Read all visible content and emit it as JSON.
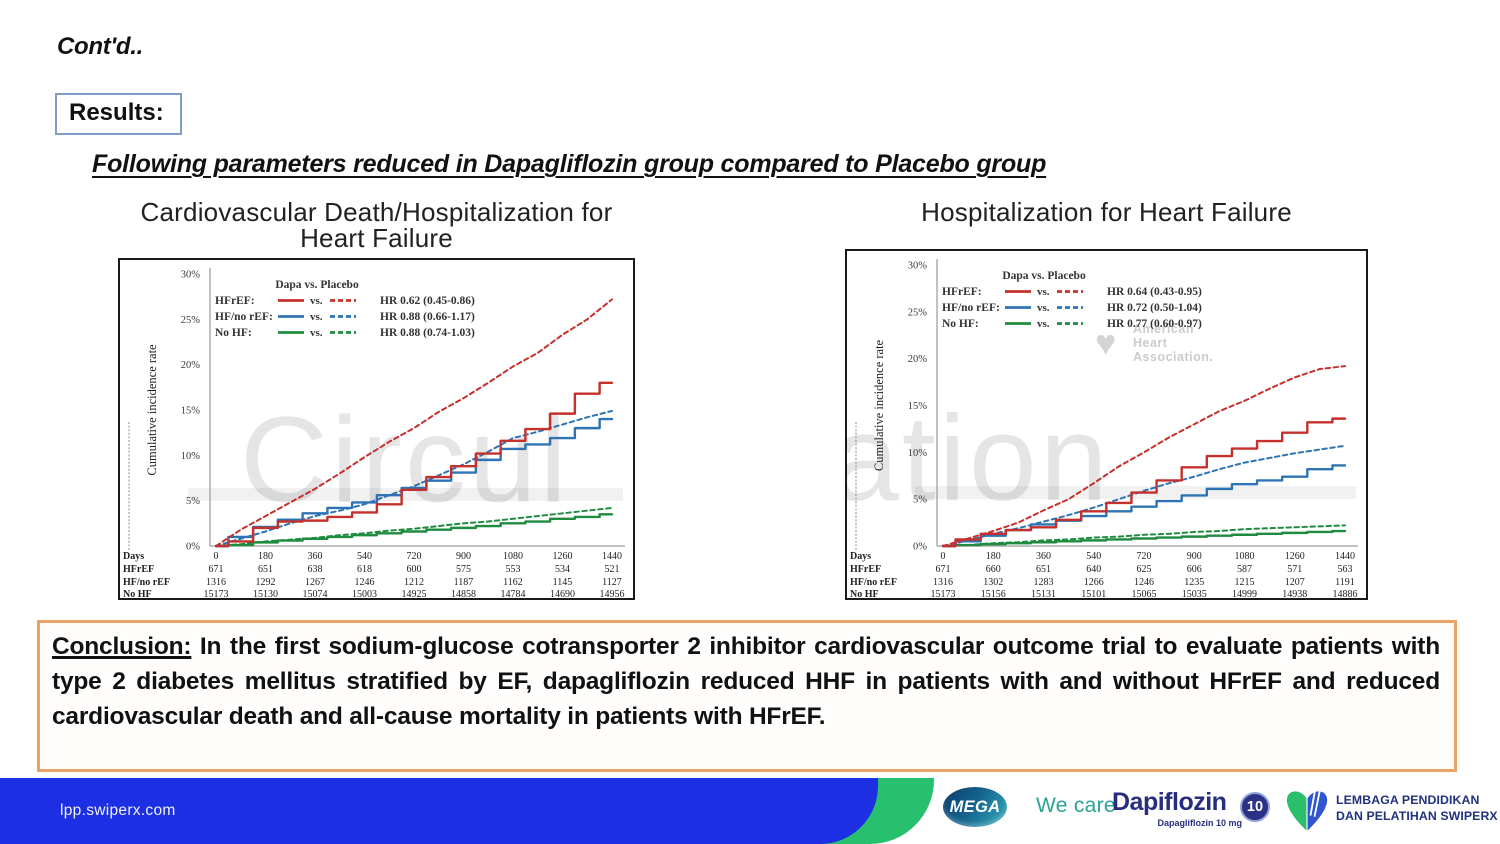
{
  "slide": {
    "contd": "Cont'd..",
    "results_label": "Results:",
    "heading": "Following parameters reduced in Dapagliflozin group compared to Placebo group"
  },
  "chart_titles": {
    "left_line1": "Cardiovascular Death/Hospitalization for",
    "left_line2": "Heart Failure",
    "right": "Hospitalization for Heart Failure"
  },
  "conclusion": {
    "label": "Conclusion:",
    "text": " In the first sodium-glucose cotransporter 2 inhibitor cardiovascular outcome trial to evaluate patients with type 2 diabetes mellitus stratified by EF, dapagliflozin reduced HHF in patients with and without HFrEF and reduced cardiovascular death and all-cause mortality in patients with HFrEF."
  },
  "footer": {
    "url": "lpp.swiperx.com",
    "mega_label": "MEGA",
    "we_care": "We care",
    "brand": "Dapiflozin",
    "brand_sub": "Dapagliflozin 10 mg",
    "badge": "10",
    "org_line1": "LEMBAGA PENDIDIKAN",
    "org_line2": "DAN PELATIHAN SWIPERX"
  },
  "theme": {
    "footer_blue": "#1d2fe3",
    "footer_green": "#27c06e",
    "navy": "#272e80",
    "teal": "#2ba294",
    "conclusion_border": "#eda266",
    "results_border": "#7e9dc8"
  },
  "chart_data": [
    {
      "type": "line",
      "title": "Cardiovascular Death/Hospitalization for Heart Failure",
      "ylabel": "Cumulative incidence rate",
      "ylim": [
        0,
        30
      ],
      "yticks": [
        "0%",
        "5%",
        "10%",
        "15%",
        "20%",
        "25%",
        "30%"
      ],
      "legend_header": "Dapa  vs.  Placebo",
      "legend_position": "top-left-inside",
      "grid": false,
      "watermark": "Circul",
      "wm_x": 120,
      "legend": [
        {
          "group": "HFrEF:",
          "hr": "HR 0.62 (0.45-0.86)",
          "color": "#c5302c"
        },
        {
          "group": "HF/no rEF:",
          "hr": "HR 0.88 (0.66-1.17)",
          "color": "#2e74b5"
        },
        {
          "group": "No HF:",
          "hr": "HR 0.88 (0.74-1.03)",
          "color": "#1e8b3f"
        }
      ],
      "x_days_step": 90,
      "series": [
        {
          "name": "No HF Placebo",
          "style": "dashed",
          "color": "#1e8b3f",
          "values": [
            0,
            0.2,
            0.5,
            0.7,
            0.9,
            1.2,
            1.4,
            1.7,
            1.9,
            2.2,
            2.5,
            2.7,
            3.0,
            3.3,
            3.6,
            3.9,
            4.2
          ]
        },
        {
          "name": "No HF Dapa",
          "style": "solid",
          "color": "#1e8b3f",
          "values": [
            0,
            0.1,
            0.4,
            0.6,
            0.8,
            1.0,
            1.2,
            1.4,
            1.6,
            1.8,
            2.0,
            2.2,
            2.5,
            2.7,
            3.0,
            3.2,
            3.5
          ]
        },
        {
          "name": "HF/no rEF Placebo",
          "style": "dashed",
          "color": "#2e74b5",
          "values": [
            0,
            0.8,
            1.6,
            2.5,
            3.3,
            3.9,
            4.6,
            5.6,
            6.6,
            7.8,
            9.0,
            10.4,
            11.9,
            12.6,
            13.4,
            14.2,
            14.9
          ]
        },
        {
          "name": "HF/no rEF Dapa",
          "style": "solid",
          "color": "#2e74b5",
          "values": [
            0,
            1.0,
            2.1,
            2.9,
            3.6,
            4.2,
            4.8,
            5.6,
            6.4,
            7.2,
            8.1,
            9.5,
            10.7,
            11.2,
            11.9,
            13.0,
            14.0
          ]
        },
        {
          "name": "HFrEF Placebo",
          "style": "dashed",
          "color": "#c5302c",
          "values": [
            0,
            1.8,
            3.3,
            4.8,
            6.3,
            8.0,
            9.8,
            11.5,
            13.0,
            14.8,
            16.3,
            18.0,
            19.8,
            21.3,
            23.3,
            25.0,
            27.2
          ]
        },
        {
          "name": "HFrEF Dapa",
          "style": "solid",
          "color": "#c5302c",
          "values": [
            0,
            0.5,
            2.0,
            2.7,
            2.8,
            3.2,
            3.7,
            4.6,
            6.2,
            7.6,
            8.8,
            10.2,
            11.6,
            12.9,
            14.6,
            16.8,
            18.0
          ]
        }
      ],
      "risk_table": {
        "columns": [
          0,
          180,
          360,
          540,
          720,
          900,
          1080,
          1260,
          1440
        ],
        "rows": [
          {
            "label": "Days",
            "values": [
              "0",
              "180",
              "360",
              "540",
              "720",
              "900",
              "1080",
              "1260",
              "1440"
            ]
          },
          {
            "label": "HFrEF",
            "values": [
              "671",
              "651",
              "638",
              "618",
              "600",
              "575",
              "553",
              "534",
              "521"
            ]
          },
          {
            "label": "HF/no rEF",
            "values": [
              "1316",
              "1292",
              "1267",
              "1246",
              "1212",
              "1187",
              "1162",
              "1145",
              "1127"
            ]
          },
          {
            "label": "No HF",
            "values": [
              "15173",
              "15130",
              "15074",
              "15003",
              "14925",
              "14858",
              "14784",
              "14690",
              "14956"
            ]
          }
        ]
      }
    },
    {
      "type": "line",
      "title": "Hospitalization for Heart Failure",
      "ylabel": "Cumulative incidence rate",
      "ylim": [
        0,
        30
      ],
      "yticks": [
        "0%",
        "5%",
        "10%",
        "15%",
        "20%",
        "25%",
        "30%"
      ],
      "legend_header": "Dapa  vs.  Placebo",
      "legend_position": "top-left-inside",
      "grid": false,
      "watermark": "ation",
      "wm_x": -16,
      "aha_watermark": [
        "American",
        "Heart",
        "Association."
      ],
      "legend": [
        {
          "group": "HFrEF:",
          "hr": "HR 0.64 (0.43-0.95)",
          "color": "#c5302c"
        },
        {
          "group": "HF/no rEF:",
          "hr": "HR 0.72 (0.50-1.04)",
          "color": "#2e74b5"
        },
        {
          "group": "No HF:",
          "hr": "HR 0.77 (0.60-0.97)",
          "color": "#1e8b3f"
        }
      ],
      "x_days_step": 90,
      "series": [
        {
          "name": "No HF Placebo",
          "style": "dashed",
          "color": "#1e8b3f",
          "values": [
            0,
            0.1,
            0.3,
            0.4,
            0.6,
            0.7,
            0.9,
            1.0,
            1.2,
            1.3,
            1.5,
            1.6,
            1.8,
            1.9,
            2.0,
            2.1,
            2.2
          ]
        },
        {
          "name": "No HF Dapa",
          "style": "solid",
          "color": "#1e8b3f",
          "values": [
            0,
            0.1,
            0.2,
            0.3,
            0.4,
            0.5,
            0.6,
            0.7,
            0.8,
            0.9,
            1.0,
            1.1,
            1.2,
            1.3,
            1.4,
            1.5,
            1.6
          ]
        },
        {
          "name": "HF/no rEF Placebo",
          "style": "dashed",
          "color": "#2e74b5",
          "values": [
            0,
            0.6,
            1.3,
            1.9,
            2.6,
            3.3,
            4.1,
            5.0,
            5.9,
            6.7,
            7.4,
            8.2,
            8.9,
            9.4,
            9.9,
            10.3,
            10.7
          ]
        },
        {
          "name": "HF/no rEF Dapa",
          "style": "solid",
          "color": "#2e74b5",
          "values": [
            0,
            0.5,
            1.1,
            1.7,
            2.3,
            2.7,
            3.2,
            3.7,
            4.2,
            4.8,
            5.4,
            6.1,
            6.6,
            7.0,
            7.4,
            8.2,
            8.6
          ]
        },
        {
          "name": "HFrEF Placebo",
          "style": "dashed",
          "color": "#c5302c",
          "values": [
            0,
            0.8,
            1.6,
            2.5,
            3.8,
            5.0,
            6.7,
            8.5,
            10.0,
            11.6,
            13.0,
            14.4,
            15.5,
            16.8,
            18.0,
            18.9,
            19.2
          ]
        },
        {
          "name": "HFrEF Dapa",
          "style": "solid",
          "color": "#c5302c",
          "values": [
            0,
            0.7,
            1.3,
            1.7,
            2.0,
            2.8,
            3.7,
            4.6,
            5.7,
            7.0,
            8.4,
            9.6,
            10.4,
            11.2,
            12.1,
            13.2,
            13.6
          ]
        }
      ],
      "risk_table": {
        "columns": [
          0,
          180,
          360,
          540,
          720,
          900,
          1080,
          1260,
          1440
        ],
        "rows": [
          {
            "label": "Days",
            "values": [
              "0",
              "180",
              "360",
              "540",
              "720",
              "900",
              "1080",
              "1260",
              "1440"
            ]
          },
          {
            "label": "HFrEF",
            "values": [
              "671",
              "660",
              "651",
              "640",
              "625",
              "606",
              "587",
              "571",
              "563"
            ]
          },
          {
            "label": "HF/no rEF",
            "values": [
              "1316",
              "1302",
              "1283",
              "1266",
              "1246",
              "1235",
              "1215",
              "1207",
              "1191"
            ]
          },
          {
            "label": "No HF",
            "values": [
              "15173",
              "15156",
              "15131",
              "15101",
              "15065",
              "15035",
              "14999",
              "14938",
              "14886"
            ]
          }
        ]
      }
    }
  ]
}
